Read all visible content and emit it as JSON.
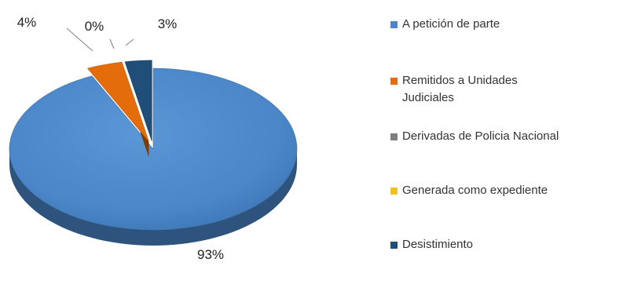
{
  "chart_data": {
    "type": "pie",
    "title": "",
    "categories": [
      "A petición de parte",
      "Remitidos a Unidades Judiciales",
      "Derivadas de Policia Nacional",
      "Generada como expediente",
      "Desistimiento"
    ],
    "values": [
      93,
      4,
      0,
      0,
      3
    ],
    "data_labels": [
      "93%",
      "4%",
      "0%",
      "",
      "3%"
    ],
    "colors": [
      "#4a86c8",
      "#e46c0a",
      "#7f7f7f",
      "#f2c314",
      "#1f4e79"
    ],
    "exploded": true,
    "three_d": true,
    "legend_position": "right"
  }
}
